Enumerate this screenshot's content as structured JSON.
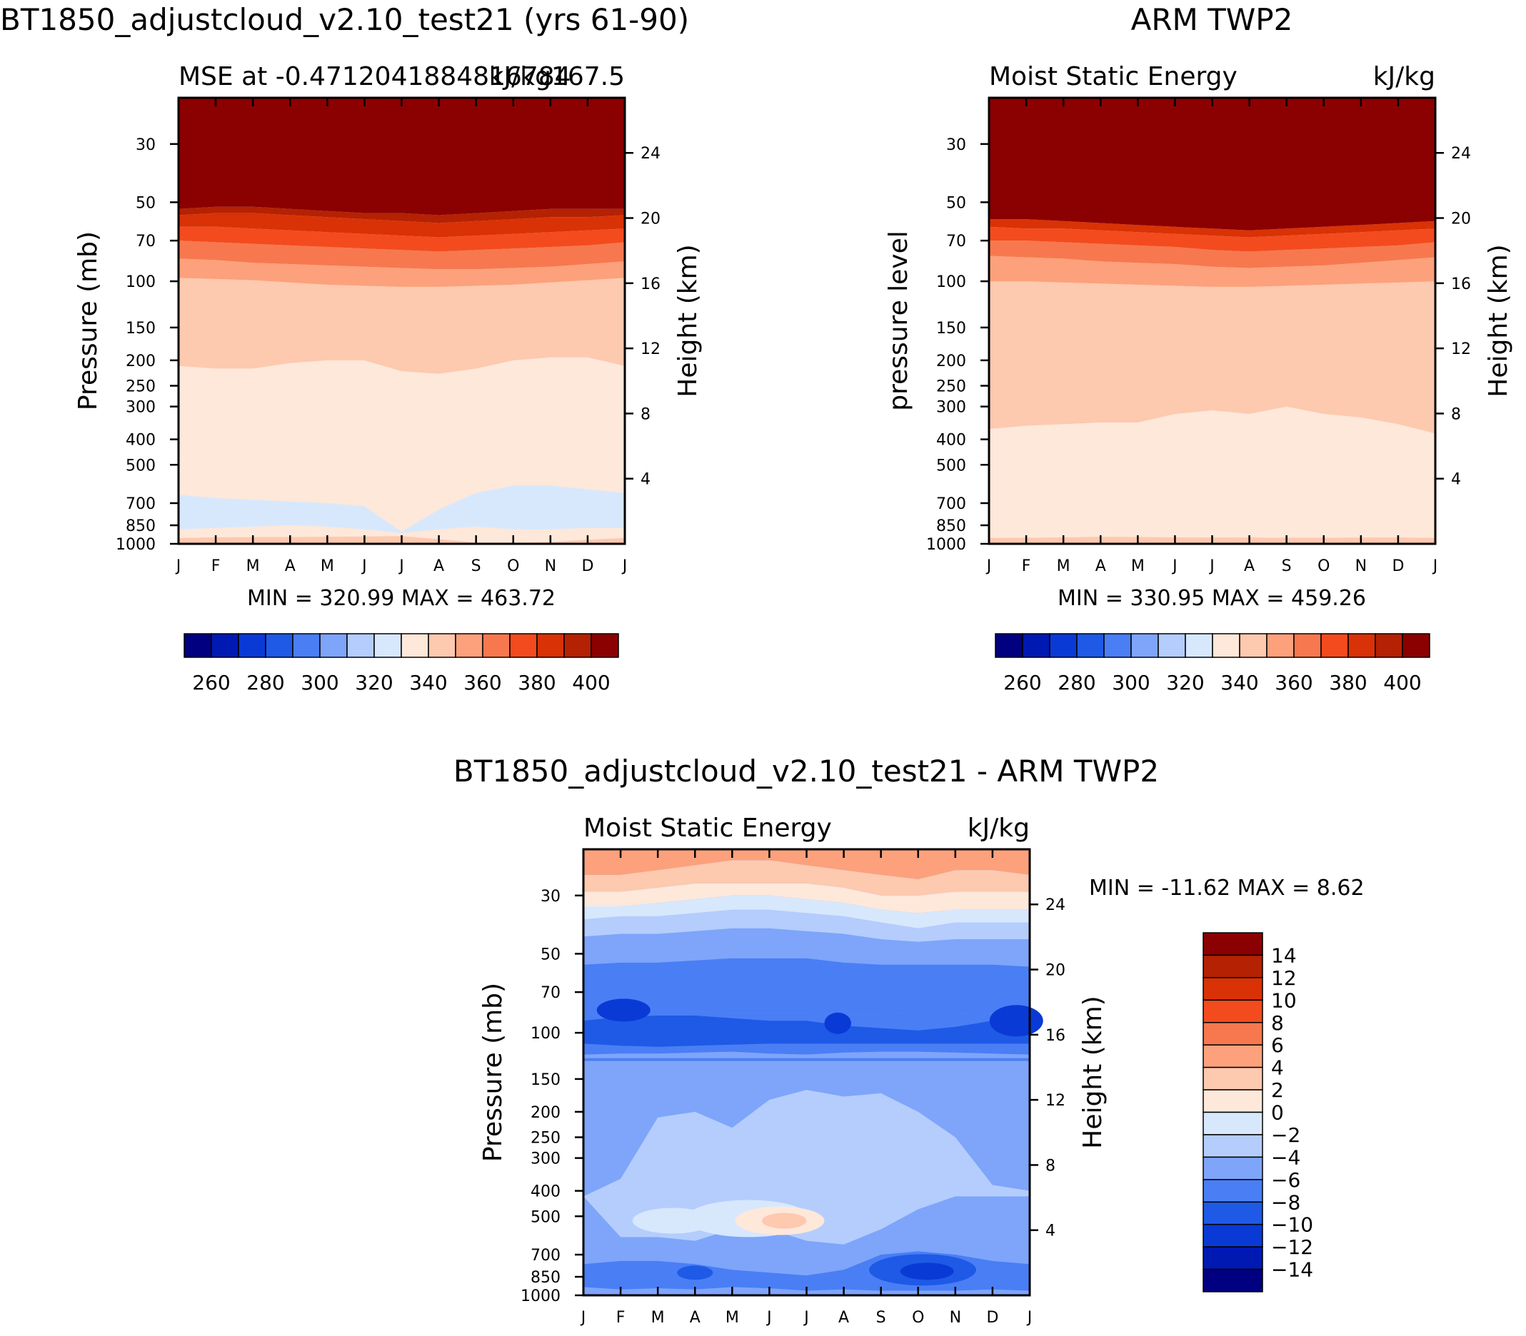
{
  "panels": {
    "model": {
      "title": "BT1850_adjustcloud_v2.10_test21 (yrs 61-90)",
      "left_title": "MSE at -0.4712041884816784",
      "right_title": "kJ/kg167.5",
      "left_axis_label": "Pressure (mb)",
      "right_axis_label": "Height (km)",
      "stats": "MIN = 320.99 MAX = 463.72"
    },
    "obs": {
      "title": "ARM TWP2",
      "left_title": "Moist Static Energy",
      "right_title": "kJ/kg",
      "left_axis_label": "pressure level",
      "right_axis_label": "Height (km)",
      "stats": "MIN = 330.95 MAX = 459.26"
    },
    "diff": {
      "title": "BT1850_adjustcloud_v2.10_test21 - ARM TWP2",
      "left_title": "Moist Static Energy",
      "right_title": "kJ/kg",
      "left_axis_label": "Pressure (mb)",
      "right_axis_label": "Height (km)",
      "stats": "MIN = -11.62 MAX =    8.62"
    }
  },
  "chart_data": [
    {
      "type": "contour",
      "panel": "model",
      "x": [
        "J",
        "F",
        "M",
        "A",
        "M",
        "J",
        "J",
        "A",
        "S",
        "O",
        "N",
        "D",
        "J"
      ],
      "y_pressure_ticks": [
        30,
        50,
        70,
        100,
        150,
        200,
        250,
        300,
        400,
        500,
        700,
        850,
        1000
      ],
      "y_height_ticks_km": [
        24,
        20,
        16,
        12,
        8,
        4
      ],
      "levels": [
        260,
        270,
        280,
        290,
        300,
        310,
        320,
        330,
        340,
        350,
        360,
        370,
        380,
        390,
        400
      ],
      "level_labels": [
        260,
        280,
        300,
        320,
        340,
        360,
        380,
        400
      ],
      "colors": [
        "#000080",
        "#0019b3",
        "#0a3ad6",
        "#1e5ae6",
        "#4a7ef5",
        "#7ea5fa",
        "#b4cdfd",
        "#d7e8fd",
        "#fde8da",
        "#fdc9af",
        "#fca17c",
        "#f7784f",
        "#f34b1e",
        "#d93206",
        "#b52103",
        "#8b0000"
      ],
      "value_range": [
        320.99,
        463.72
      ]
    },
    {
      "type": "contour",
      "panel": "obs",
      "x": [
        "J",
        "F",
        "M",
        "A",
        "M",
        "J",
        "J",
        "A",
        "S",
        "O",
        "N",
        "D",
        "J"
      ],
      "y_pressure_ticks": [
        30,
        50,
        70,
        100,
        150,
        200,
        250,
        300,
        400,
        500,
        700,
        850,
        1000
      ],
      "y_height_ticks_km": [
        24,
        20,
        16,
        12,
        8,
        4
      ],
      "levels": [
        260,
        270,
        280,
        290,
        300,
        310,
        320,
        330,
        340,
        350,
        360,
        370,
        380,
        390,
        400
      ],
      "level_labels": [
        260,
        280,
        300,
        320,
        340,
        360,
        380,
        400
      ],
      "value_range": [
        330.95,
        459.26
      ]
    },
    {
      "type": "contour",
      "panel": "diff",
      "x": [
        "J",
        "F",
        "M",
        "A",
        "M",
        "J",
        "J",
        "A",
        "S",
        "O",
        "N",
        "D",
        "J"
      ],
      "y_pressure_ticks": [
        30,
        50,
        70,
        100,
        150,
        200,
        250,
        300,
        400,
        500,
        700,
        850,
        1000
      ],
      "y_height_ticks_km": [
        24,
        20,
        16,
        12,
        8,
        4
      ],
      "levels": [
        -14,
        -12,
        -10,
        -8,
        -6,
        -4,
        -2,
        0,
        2,
        4,
        6,
        8,
        10,
        12,
        14
      ],
      "level_labels": [
        14,
        12,
        10,
        8,
        6,
        4,
        2,
        0,
        -2,
        -4,
        -6,
        -8,
        -10,
        -12,
        -14
      ],
      "value_range": [
        -11.62,
        8.62
      ]
    }
  ]
}
